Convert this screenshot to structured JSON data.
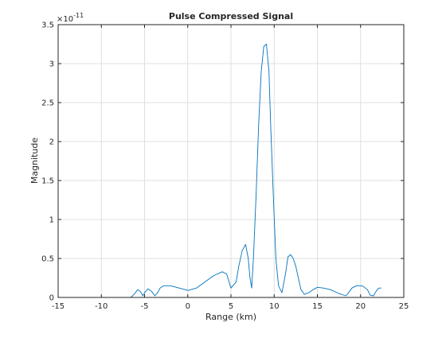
{
  "chart_data": {
    "type": "line",
    "title": "Pulse Compressed Signal",
    "xlabel": "Range (km)",
    "ylabel": "Magnitude",
    "y_exponent_label": "×10",
    "y_exponent_power": "-11",
    "xlim": [
      -15,
      25
    ],
    "ylim": [
      0,
      3.5
    ],
    "xticks": [
      -15,
      -10,
      -5,
      0,
      5,
      10,
      15,
      20,
      25
    ],
    "xtick_labels": [
      "-15",
      "-10",
      "-5",
      "0",
      "5",
      "10",
      "15",
      "20",
      "25"
    ],
    "yticks": [
      0,
      0.5,
      1,
      1.5,
      2,
      2.5,
      3,
      3.5
    ],
    "ytick_labels": [
      "0",
      "0.5",
      "1",
      "1.5",
      "2",
      "2.5",
      "3",
      "3.5"
    ],
    "grid": true,
    "line_color": "#0072bd",
    "series": [
      {
        "x": [
          -15,
          -6.6,
          -6.2,
          -5.8,
          -5.5,
          -5.2,
          -5.0,
          -4.6,
          -4.2,
          -3.8,
          -3.5,
          -3.2,
          -2.8,
          -2.0,
          -1.0,
          0.0,
          1.0,
          2.0,
          3.0,
          4.0,
          4.5,
          5.0,
          5.6,
          5.9,
          6.3,
          6.7,
          7.0,
          7.2,
          7.4,
          7.6,
          7.9,
          8.2,
          8.5,
          8.8,
          9.1,
          9.4,
          9.6,
          9.9,
          10.2,
          10.5,
          10.9,
          11.3,
          11.6,
          11.9,
          12.2,
          12.5,
          12.8,
          13.1,
          13.5,
          14.0,
          14.5,
          15.0,
          15.7,
          16.5,
          17.5,
          18.3,
          18.6,
          19.0,
          19.5,
          20.2,
          20.8,
          21.1,
          21.5,
          21.8,
          22.1,
          22.4
        ],
        "y": [
          0,
          0,
          0.04,
          0.1,
          0.08,
          0.02,
          0.06,
          0.11,
          0.08,
          0.02,
          0.06,
          0.12,
          0.15,
          0.15,
          0.12,
          0.09,
          0.12,
          0.2,
          0.28,
          0.33,
          0.3,
          0.12,
          0.2,
          0.4,
          0.6,
          0.68,
          0.5,
          0.25,
          0.12,
          0.5,
          1.3,
          2.2,
          2.9,
          3.22,
          3.25,
          2.9,
          2.2,
          1.3,
          0.5,
          0.15,
          0.06,
          0.3,
          0.52,
          0.55,
          0.5,
          0.4,
          0.25,
          0.1,
          0.04,
          0.06,
          0.1,
          0.13,
          0.12,
          0.1,
          0.05,
          0.02,
          0.06,
          0.12,
          0.15,
          0.15,
          0.1,
          0.03,
          0.02,
          0.08,
          0.12,
          0.12
        ]
      }
    ]
  }
}
